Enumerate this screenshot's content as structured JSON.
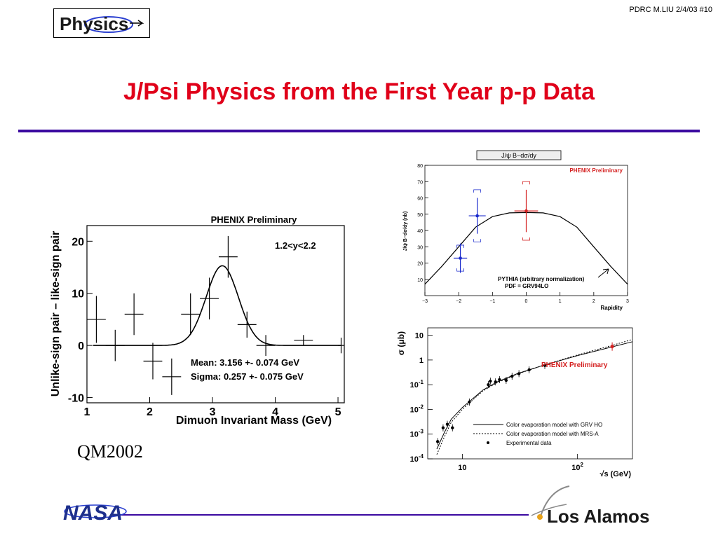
{
  "slide_ref": "PDRC M.LIU 2/4/03 #10",
  "logo_text": "Physics",
  "title": "J/Psi Physics from the First Year p-p Data",
  "conference_label": "QM2002",
  "footer_logos": {
    "left": "NASA",
    "right": "Los Alamos"
  },
  "colors": {
    "title_red": "#e0001a",
    "rule_purple": "#3b0aa0",
    "series_blue": "#1a2acc",
    "series_red": "#d42020"
  },
  "chart_data": [
    {
      "type": "scatter",
      "title": "PHENIX Preliminary",
      "xlabel": "Dimuon Invariant Mass (GeV)",
      "ylabel": "Unlike-sign pair – like-sign pair",
      "xlim": [
        1,
        5.1
      ],
      "ylim": [
        -11,
        23
      ],
      "x_ticks": [
        "1",
        "2",
        "3",
        "4",
        "5"
      ],
      "y_ticks": [
        "-10",
        "0",
        "10",
        "20"
      ],
      "annotation": "1.2<y<2.2",
      "fit_mean_text": "Mean: 3.156 +- 0.074 GeV",
      "fit_sigma_text": "Sigma: 0.257 +- 0.075 GeV",
      "fit": {
        "mean": 3.156,
        "sigma": 0.257,
        "amplitude": 15.3
      },
      "points": [
        {
          "x": 1.15,
          "y": 5,
          "xerr": 0.15,
          "yerr": 4.5
        },
        {
          "x": 1.45,
          "y": 0,
          "xerr": 0.15,
          "yerr": 3
        },
        {
          "x": 1.75,
          "y": 6,
          "xerr": 0.15,
          "yerr": 4
        },
        {
          "x": 2.05,
          "y": -3,
          "xerr": 0.15,
          "yerr": 3.5
        },
        {
          "x": 2.35,
          "y": -6,
          "xerr": 0.15,
          "yerr": 3.5
        },
        {
          "x": 2.65,
          "y": 6,
          "xerr": 0.15,
          "yerr": 4
        },
        {
          "x": 2.95,
          "y": 9,
          "xerr": 0.15,
          "yerr": 4
        },
        {
          "x": 3.25,
          "y": 17,
          "xerr": 0.15,
          "yerr": 4
        },
        {
          "x": 3.55,
          "y": 4,
          "xerr": 0.15,
          "yerr": 2.5
        },
        {
          "x": 3.85,
          "y": 0,
          "xerr": 0.15,
          "yerr": 2
        },
        {
          "x": 4.45,
          "y": 1,
          "xerr": 0.15,
          "yerr": 1
        },
        {
          "x": 5.05,
          "y": 0,
          "xerr": 0.05,
          "yerr": 1.5
        }
      ]
    },
    {
      "type": "scatter",
      "title": "J/ψ B−dσ/dy",
      "ylabel": "J/ψ B−dσ/dy (nb)",
      "xlabel": "Rapidity",
      "xlim": [
        -3,
        3
      ],
      "ylim": [
        0,
        80
      ],
      "x_ticks": [
        "−3",
        "−2",
        "−1",
        "0",
        "1",
        "2",
        "3"
      ],
      "y_ticks": [
        "10",
        "20",
        "30",
        "40",
        "50",
        "60",
        "70",
        "80"
      ],
      "legend_label": "PHENIX Preliminary",
      "model_line1": "PYTHIA (arbitrary normalization)",
      "model_line2": "PDF = GRV94LO",
      "series": [
        {
          "color": "blue",
          "points": [
            {
              "x": -1.95,
              "y": 23,
              "xerr": 0.2,
              "yerr": 9,
              "syst": [
                15,
                31
              ]
            },
            {
              "x": -1.45,
              "y": 49,
              "xerr": 0.25,
              "yerr": 11,
              "syst": [
                33,
                65
              ]
            }
          ]
        },
        {
          "color": "red",
          "points": [
            {
              "x": 0,
              "y": 52,
              "xerr": 0.35,
              "yerr": 13,
              "syst": [
                34,
                70
              ]
            }
          ]
        }
      ],
      "model_curve": [
        [
          -3,
          7
        ],
        [
          -2.5,
          18
        ],
        [
          -2,
          30
        ],
        [
          -1.5,
          42
        ],
        [
          -1,
          48.5
        ],
        [
          -0.5,
          50.8
        ],
        [
          0,
          51
        ],
        [
          0.5,
          50.8
        ],
        [
          1,
          48.5
        ],
        [
          1.5,
          42
        ],
        [
          2,
          30
        ],
        [
          2.5,
          18
        ],
        [
          3,
          7
        ]
      ]
    },
    {
      "type": "line",
      "xlabel": "√s (GeV)",
      "ylabel": "σ (μb)",
      "log_x": true,
      "log_y": true,
      "xlim": [
        5,
        300
      ],
      "ylim": [
        0.0001,
        20
      ],
      "x_ticks": [
        "10",
        "10^2"
      ],
      "y_ticks": [
        "10",
        "1",
        "10^-1",
        "10^-2",
        "10^-3",
        "10^-4"
      ],
      "annotation": "PHENIX Preliminary",
      "legend": [
        "Color evaporation model with GRV HO",
        "Color evaporation model with MRS-A",
        "Experimental data"
      ],
      "series": [
        {
          "name": "Color evaporation model with GRV HO",
          "points": [
            [
              5.5,
              8e-05
            ],
            [
              6,
              0.00025
            ],
            [
              7,
              0.0012
            ],
            [
              8,
              0.004
            ],
            [
              10,
              0.012
            ],
            [
              15,
              0.06
            ],
            [
              20,
              0.13
            ],
            [
              30,
              0.28
            ],
            [
              50,
              0.6
            ],
            [
              100,
              1.5
            ],
            [
              200,
              3.4
            ],
            [
              300,
              5.5
            ]
          ]
        },
        {
          "name": "Color evaporation model with MRS-A",
          "points": [
            [
              5.5,
              5e-05
            ],
            [
              6,
              0.00015
            ],
            [
              7,
              0.0008
            ],
            [
              8,
              0.003
            ],
            [
              10,
              0.01
            ],
            [
              15,
              0.055
            ],
            [
              20,
              0.12
            ],
            [
              30,
              0.27
            ],
            [
              50,
              0.6
            ],
            [
              100,
              1.6
            ],
            [
              200,
              3.9
            ],
            [
              300,
              6.8
            ]
          ]
        }
      ],
      "data_points": [
        [
          6.1,
          0.0005
        ],
        [
          6.8,
          0.0018
        ],
        [
          7.4,
          0.0025
        ],
        [
          8.2,
          0.0018
        ],
        [
          11.5,
          0.02
        ],
        [
          16.8,
          0.1
        ],
        [
          17.5,
          0.14
        ],
        [
          19.4,
          0.13
        ],
        [
          21,
          0.16
        ],
        [
          24,
          0.15
        ],
        [
          27,
          0.22
        ],
        [
          31,
          0.28
        ],
        [
          38,
          0.4
        ],
        [
          52,
          0.6
        ]
      ],
      "phenix_point": [
        200,
        3.5
      ]
    }
  ]
}
